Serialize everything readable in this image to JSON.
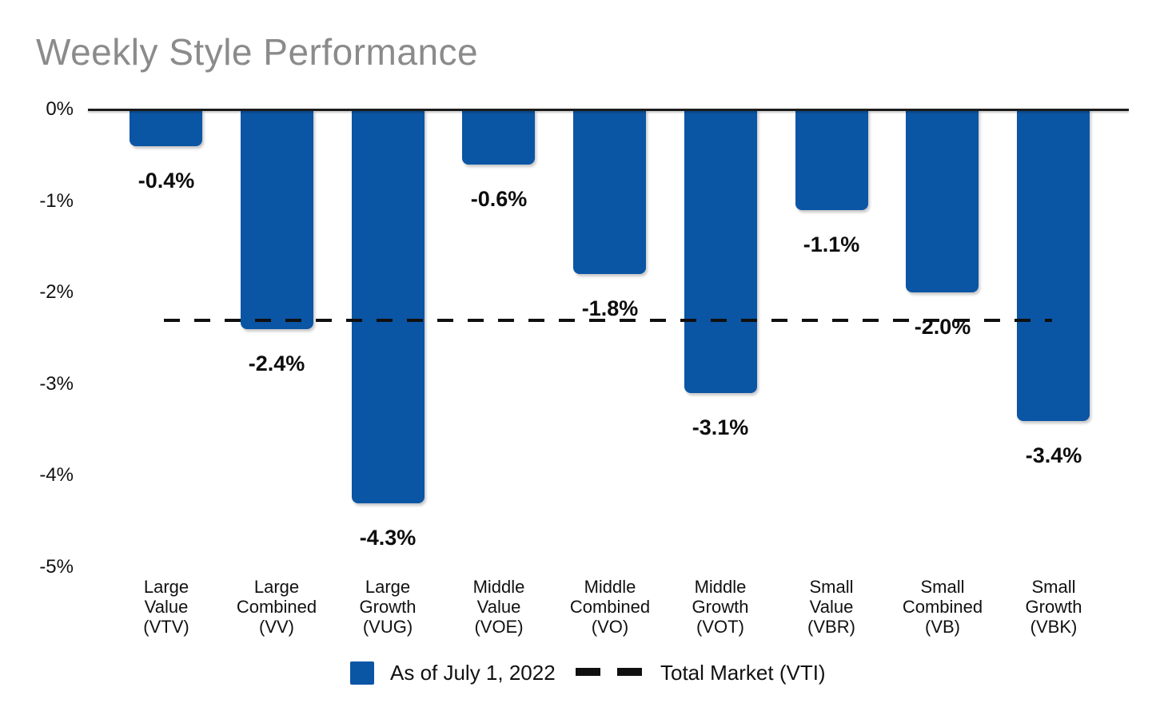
{
  "title": "Weekly Style Performance",
  "colors": {
    "bar_blue": "#0b55a5",
    "title_gray": "#8b8b8b",
    "text_black": "#111111"
  },
  "legend": {
    "series_label": "As of July 1, 2022",
    "reference_label": "Total Market (VTI)"
  },
  "chart_data": {
    "type": "bar",
    "title": "Weekly Style Performance",
    "categories": [
      "Large Value (VTV)",
      "Large Combined (VV)",
      "Large Growth (VUG)",
      "Middle Value (VOE)",
      "Middle Combined (VO)",
      "Middle Growth (VOT)",
      "Small Value (VBR)",
      "Small Combined (VB)",
      "Small Growth (VBK)"
    ],
    "category_lines": [
      [
        "Large",
        "Value",
        "(VTV)"
      ],
      [
        "Large",
        "Combined",
        "(VV)"
      ],
      [
        "Large",
        "Growth",
        "(VUG)"
      ],
      [
        "Middle",
        "Value",
        "(VOE)"
      ],
      [
        "Middle",
        "Combined",
        "(VO)"
      ],
      [
        "Middle",
        "Growth",
        "(VOT)"
      ],
      [
        "Small",
        "Value",
        "(VBR)"
      ],
      [
        "Small",
        "Combined",
        "(VB)"
      ],
      [
        "Small",
        "Growth",
        "(VBK)"
      ]
    ],
    "values": [
      -0.4,
      -2.4,
      -4.3,
      -0.6,
      -1.8,
      -3.1,
      -1.1,
      -2.0,
      -3.4
    ],
    "value_labels": [
      "-0.4%",
      "-2.4%",
      "-4.3%",
      "-0.6%",
      "-1.8%",
      "-3.1%",
      "-1.1%",
      "-2.0%",
      "-3.4%"
    ],
    "unit": "%",
    "ylim": [
      -5,
      0
    ],
    "ytick_labels": [
      "0%",
      "-1%",
      "-2%",
      "-3%",
      "-4%",
      "-5%"
    ],
    "grid": false,
    "reference_line": {
      "name": "Total Market (VTI)",
      "value": -2.3,
      "style": "dashed"
    },
    "legend": [
      {
        "swatch": "blue-square",
        "label": "As of July 1, 2022"
      },
      {
        "swatch": "black-dashes",
        "label": "Total Market (VTI)"
      }
    ],
    "legend_position": "bottom-center"
  }
}
